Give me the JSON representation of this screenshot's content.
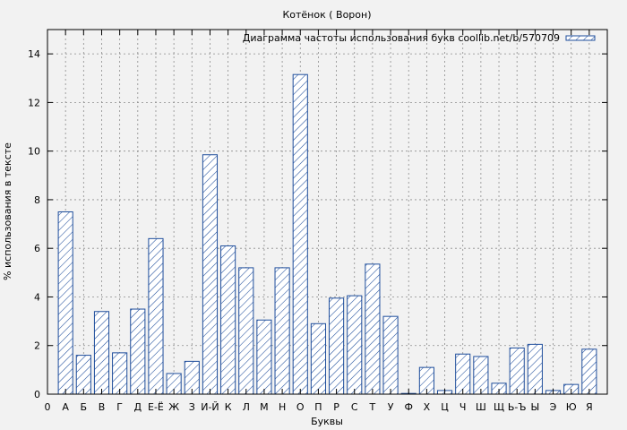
{
  "chart_data": {
    "type": "bar",
    "title": "Котёнок ( Ворон)",
    "xlabel": "Буквы",
    "ylabel": "% использования в тексте",
    "legend": "Диаграмма частоты использования букв coollib.net/b/570709",
    "legend_position": "top-right",
    "grid": true,
    "ylim": [
      0,
      15
    ],
    "yticks": [
      "0",
      "2",
      "4",
      "6",
      "8",
      "10",
      "12",
      "14"
    ],
    "ytick_values": [
      0,
      2,
      4,
      6,
      8,
      10,
      12,
      14
    ],
    "first_xtick": "0",
    "categories": [
      "А",
      "Б",
      "В",
      "Г",
      "Д",
      "Е-Ё",
      "Ж",
      "З",
      "И-Й",
      "К",
      "Л",
      "М",
      "Н",
      "О",
      "П",
      "Р",
      "С",
      "Т",
      "У",
      "Ф",
      "Х",
      "Ц",
      "Ч",
      "Ш",
      "Щ",
      "Ь-Ъ",
      "Ы",
      "Э",
      "Ю",
      "Я"
    ],
    "values": [
      7.5,
      1.6,
      3.4,
      1.7,
      3.5,
      6.4,
      0.85,
      1.35,
      9.85,
      6.1,
      5.2,
      3.05,
      5.2,
      13.15,
      2.9,
      3.95,
      4.05,
      5.35,
      3.2,
      0.03,
      1.1,
      0.15,
      1.65,
      1.55,
      0.45,
      1.9,
      2.05,
      0.15,
      0.4,
      1.85
    ],
    "colors": {
      "bar_stroke": "#1f4e9c",
      "hatch": "#1f4e9c",
      "bar_fill": "#ffffff",
      "plot_bg": "#f2f2f2",
      "grid": "#8c8c8c"
    }
  }
}
